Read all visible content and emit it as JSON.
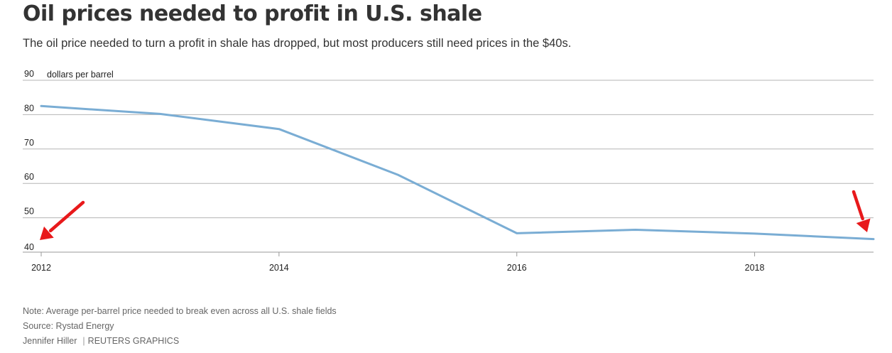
{
  "title": "Oil prices needed to profit in U.S. shale",
  "subtitle": "The oil price needed to turn a profit in shale has dropped, but most producers still need prices in the $40s.",
  "chart_data": {
    "type": "line",
    "ylabel": "dollars per barrel",
    "ylim": [
      40,
      90
    ],
    "yticks": [
      40,
      50,
      60,
      70,
      80,
      90
    ],
    "xlim": [
      2012,
      2019
    ],
    "xticks": [
      2012,
      2014,
      2016,
      2018
    ],
    "grid": true,
    "line_color": "#7aadd4",
    "series": [
      {
        "x": [
          2012,
          2013,
          2014,
          2015,
          2016,
          2017,
          2018,
          2019
        ],
        "values": [
          82.5,
          80.2,
          75.8,
          62.5,
          45.5,
          46.5,
          45.4,
          43.8
        ]
      }
    ],
    "annotations": [
      {
        "type": "arrow",
        "color": "#e8191b",
        "points_to": "2012 at 40"
      },
      {
        "type": "arrow",
        "color": "#e8191b",
        "points_to": "2019 line end"
      }
    ]
  },
  "footer": {
    "note": "Note: Average per-barrel price needed to break even across all U.S. shale fields",
    "source": "Source: Rystad Energy",
    "author": "Jennifer Hiller",
    "credit": "REUTERS GRAPHICS"
  }
}
